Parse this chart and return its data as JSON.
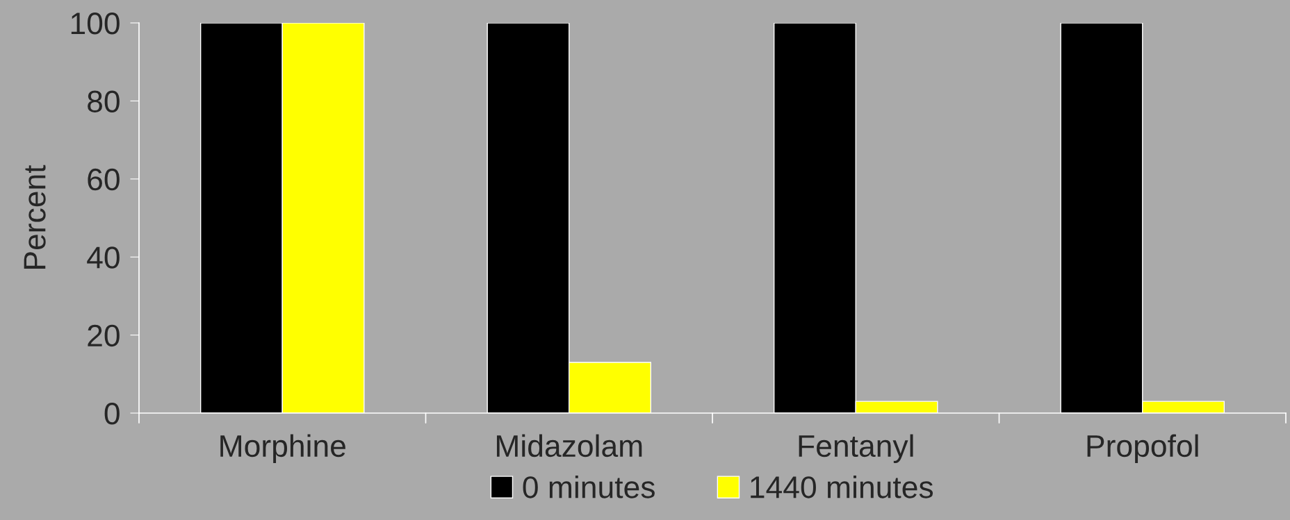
{
  "chart_data": {
    "type": "bar",
    "ylabel": "Percent",
    "categories": [
      "Morphine",
      "Midazolam",
      "Fentanyl",
      "Propofol"
    ],
    "series": [
      {
        "name": "0 minutes",
        "color": "#000000",
        "values": [
          100,
          100,
          100,
          100
        ]
      },
      {
        "name": "1440 minutes",
        "color": "#ffff00",
        "values": [
          100,
          13,
          3,
          3
        ]
      }
    ],
    "ylim": [
      0,
      100
    ],
    "yticks": [
      0,
      20,
      40,
      60,
      80,
      100
    ],
    "grid": false,
    "legend": "bottom"
  }
}
